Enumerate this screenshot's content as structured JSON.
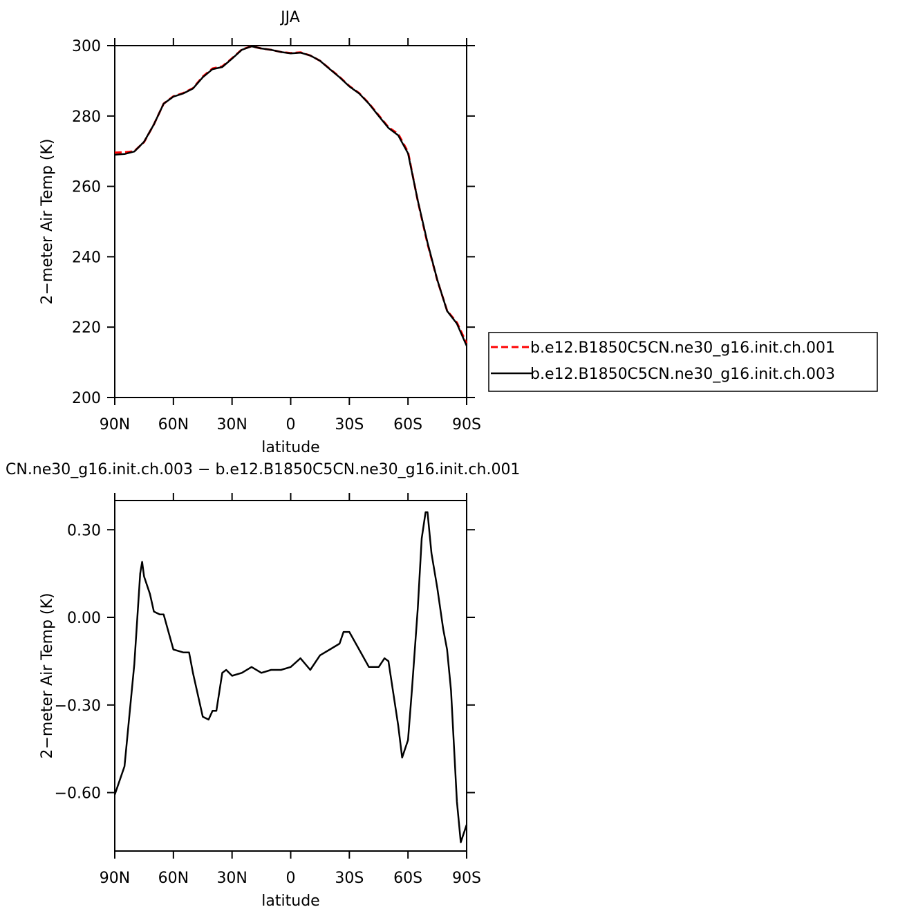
{
  "chart_data": [
    {
      "type": "line",
      "title": "JJA",
      "ylabel": "2−meter Air Temp (K)",
      "xlabel": "latitude",
      "x": [
        90,
        85,
        80,
        75,
        70,
        65,
        60,
        55,
        50,
        45,
        40,
        35,
        30,
        25,
        20,
        15,
        10,
        5,
        0,
        -5,
        -10,
        -15,
        -20,
        -25,
        -30,
        -35,
        -40,
        -45,
        -50,
        -55,
        -60,
        -65,
        -70,
        -75,
        -80,
        -85,
        -90
      ],
      "xlim": [
        90,
        -90
      ],
      "xticks": [
        {
          "value": 90,
          "label": "90N"
        },
        {
          "value": 60,
          "label": "60N"
        },
        {
          "value": 30,
          "label": "30N"
        },
        0,
        {
          "value": -30,
          "label": "30S"
        },
        {
          "value": -60,
          "label": "60S"
        },
        {
          "value": -90,
          "label": "90S"
        }
      ],
      "ylim": [
        200,
        300
      ],
      "yticks": [
        200,
        220,
        240,
        260,
        280,
        300
      ],
      "legend_position": "right",
      "series": [
        {
          "name": "b.e12.B1850C5CN.ne30_g16.init.ch.001",
          "color": "#ff0000",
          "dash": true,
          "values": [
            269.6,
            269.7,
            270.0,
            272.6,
            277.6,
            283.5,
            285.6,
            286.5,
            287.9,
            291.2,
            293.5,
            294.1,
            296.4,
            298.9,
            299.8,
            299.2,
            298.8,
            298.2,
            297.9,
            298.1,
            297.2,
            295.7,
            293.4,
            291.1,
            288.5,
            286.5,
            283.6,
            280.2,
            276.8,
            274.9,
            269.8,
            255.9,
            243.7,
            233.3,
            224.7,
            221.3,
            215.4
          ]
        },
        {
          "name": "b.e12.B1850C5CN.ne30_g16.init.ch.003",
          "color": "#000000",
          "dash": false,
          "values": [
            269.0,
            269.2,
            269.9,
            272.7,
            277.6,
            283.5,
            285.5,
            286.4,
            287.8,
            291.0,
            293.3,
            293.9,
            296.3,
            298.8,
            299.8,
            299.2,
            298.8,
            298.2,
            297.8,
            298.0,
            297.2,
            295.7,
            293.3,
            291.0,
            288.4,
            286.4,
            283.5,
            280.0,
            276.6,
            274.5,
            269.4,
            256.0,
            244.0,
            233.4,
            224.6,
            221.0,
            214.7
          ]
        }
      ]
    },
    {
      "type": "line",
      "title": "CN.ne30_g16.init.ch.003 − b.e12.B1850C5CN.ne30_g16.init.ch.001",
      "ylabel": "2−meter Air Temp (K)",
      "xlabel": "latitude",
      "x": [
        90,
        85,
        80,
        77,
        76,
        75,
        72,
        70,
        67,
        65,
        60,
        55,
        52,
        50,
        45,
        42,
        40,
        38,
        35,
        33,
        30,
        25,
        20,
        15,
        10,
        5,
        0,
        -5,
        -10,
        -15,
        -20,
        -25,
        -27,
        -30,
        -35,
        -40,
        -45,
        -48,
        -50,
        -55,
        -57,
        -60,
        -62,
        -65,
        -67,
        -69,
        -70,
        -72,
        -75,
        -78,
        -80,
        -82,
        -85,
        -87,
        -90
      ],
      "xlim": [
        90,
        -90
      ],
      "xticks": [
        {
          "value": 90,
          "label": "90N"
        },
        {
          "value": 60,
          "label": "60N"
        },
        {
          "value": 30,
          "label": "30N"
        },
        0,
        {
          "value": -30,
          "label": "30S"
        },
        {
          "value": -60,
          "label": "60S"
        },
        {
          "value": -90,
          "label": "90S"
        }
      ],
      "ylim": [
        -0.8,
        0.4
      ],
      "yticks": [
        {
          "value": -0.6,
          "label": "−0.60"
        },
        {
          "value": -0.3,
          "label": "−0.30"
        },
        {
          "value": 0,
          "label": "0.00"
        },
        {
          "value": 0.3,
          "label": "0.30"
        }
      ],
      "series": [
        {
          "color": "#000000",
          "values": [
            -0.607,
            -0.51,
            -0.16,
            0.15,
            0.19,
            0.14,
            0.08,
            0.02,
            0.01,
            0.01,
            -0.11,
            -0.12,
            -0.12,
            -0.19,
            -0.34,
            -0.35,
            -0.32,
            -0.32,
            -0.19,
            -0.18,
            -0.2,
            -0.19,
            -0.17,
            -0.19,
            -0.18,
            -0.18,
            -0.17,
            -0.14,
            -0.18,
            -0.13,
            -0.11,
            -0.09,
            -0.05,
            -0.05,
            -0.11,
            -0.17,
            -0.17,
            -0.14,
            -0.15,
            -0.37,
            -0.48,
            -0.42,
            -0.25,
            0.03,
            0.27,
            0.36,
            0.36,
            0.22,
            0.1,
            -0.04,
            -0.11,
            -0.25,
            -0.63,
            -0.77,
            -0.71
          ]
        }
      ]
    }
  ]
}
